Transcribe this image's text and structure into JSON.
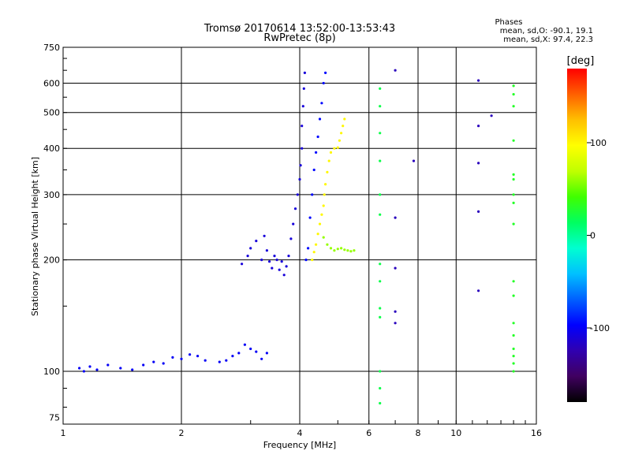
{
  "chart_data": {
    "type": "scatter",
    "title": "Tromsø 20170614 13:52:00-13:53:43",
    "subtitle": "RwPretec (8p)",
    "xlabel": "Frequency [MHz]",
    "ylabel": "Stationary phase Virtual Height [km]",
    "x_scale": "log",
    "y_scale": "log",
    "xlim": [
      1,
      16
    ],
    "ylim": [
      72,
      750
    ],
    "x_ticks": [
      1,
      2,
      4,
      6,
      8,
      10,
      16
    ],
    "x_tick_labels": [
      "1",
      "2",
      "4",
      "6",
      "8",
      "10",
      "16"
    ],
    "y_ticks": [
      75,
      100,
      200,
      300,
      400,
      500,
      600,
      750
    ],
    "y_tick_labels": [
      "75",
      "100",
      "200",
      "300",
      "400",
      "500",
      "600",
      "750"
    ],
    "grid_x_major": [
      2,
      4,
      6,
      8,
      10
    ],
    "grid_y_major": [
      100,
      200,
      300,
      400,
      500,
      600
    ],
    "stats": {
      "heading": "Phases",
      "line_o": "mean, sd,O: -90.1, 19.1",
      "line_x": "mean, sd,X:  97.4, 22.3"
    },
    "colorbar": {
      "label": "[deg]",
      "min": -180,
      "max": 180,
      "ticks": [
        100,
        0,
        -100
      ],
      "tick_labels": [
        "100",
        "0",
        "-100"
      ],
      "colors": [
        "#000000",
        "#400060",
        "#3000b0",
        "#0000ff",
        "#0060ff",
        "#00c0ff",
        "#00ffd0",
        "#00ff60",
        "#40ff00",
        "#c0ff00",
        "#ffff00",
        "#ffc000",
        "#ff6000",
        "#ff0000"
      ]
    },
    "traces": [
      {
        "name": "",
        "phase": -100,
        "points": [
          [
            1.1,
            102
          ],
          [
            1.13,
            100
          ],
          [
            1.17,
            103
          ],
          [
            1.22,
            101
          ],
          [
            1.3,
            104
          ],
          [
            1.4,
            102
          ],
          [
            1.5,
            101
          ],
          [
            1.6,
            104
          ],
          [
            1.7,
            106
          ],
          [
            1.8,
            105
          ],
          [
            1.9,
            109
          ],
          [
            2.0,
            108
          ],
          [
            2.1,
            111
          ],
          [
            2.2,
            110
          ],
          [
            2.3,
            107
          ],
          [
            2.5,
            106
          ],
          [
            2.6,
            107
          ],
          [
            2.7,
            110
          ],
          [
            2.8,
            112
          ],
          [
            2.9,
            118
          ],
          [
            3.0,
            115
          ],
          [
            3.1,
            113
          ],
          [
            3.2,
            108
          ],
          [
            3.3,
            112
          ]
        ]
      },
      {
        "name": "",
        "phase": -110,
        "points": [
          [
            2.85,
            195
          ],
          [
            2.95,
            205
          ],
          [
            3.0,
            215
          ],
          [
            3.1,
            225
          ],
          [
            3.2,
            200
          ],
          [
            3.25,
            232
          ],
          [
            3.3,
            212
          ],
          [
            3.35,
            198
          ],
          [
            3.4,
            190
          ],
          [
            3.45,
            205
          ],
          [
            3.5,
            200
          ],
          [
            3.55,
            188
          ],
          [
            3.6,
            198
          ],
          [
            3.65,
            182
          ],
          [
            3.7,
            192
          ],
          [
            3.75,
            205
          ],
          [
            3.8,
            228
          ],
          [
            3.85,
            250
          ],
          [
            3.9,
            275
          ],
          [
            3.95,
            300
          ],
          [
            4.0,
            330
          ],
          [
            4.02,
            360
          ],
          [
            4.05,
            400
          ],
          [
            4.05,
            460
          ],
          [
            4.08,
            520
          ],
          [
            4.1,
            580
          ],
          [
            4.12,
            640
          ]
        ]
      },
      {
        "name": "",
        "phase": -95,
        "points": [
          [
            4.15,
            200
          ],
          [
            4.2,
            215
          ],
          [
            4.25,
            260
          ],
          [
            4.3,
            300
          ],
          [
            4.35,
            350
          ],
          [
            4.4,
            390
          ],
          [
            4.45,
            430
          ],
          [
            4.5,
            480
          ],
          [
            4.55,
            530
          ],
          [
            4.6,
            600
          ],
          [
            4.65,
            640
          ]
        ]
      },
      {
        "name": "",
        "phase": 100,
        "points": [
          [
            4.3,
            200
          ],
          [
            4.35,
            210
          ],
          [
            4.4,
            220
          ],
          [
            4.45,
            235
          ],
          [
            4.5,
            250
          ],
          [
            4.55,
            265
          ],
          [
            4.6,
            280
          ],
          [
            4.62,
            300
          ],
          [
            4.65,
            320
          ],
          [
            4.7,
            345
          ],
          [
            4.75,
            370
          ],
          [
            4.8,
            390
          ],
          [
            4.9,
            400
          ],
          [
            5.0,
            402
          ],
          [
            5.05,
            420
          ],
          [
            5.1,
            440
          ],
          [
            5.15,
            460
          ],
          [
            5.2,
            480
          ]
        ]
      },
      {
        "name": "",
        "phase": 60,
        "points": [
          [
            4.6,
            230
          ],
          [
            4.7,
            220
          ],
          [
            4.8,
            215
          ],
          [
            4.9,
            212
          ],
          [
            5.0,
            214
          ],
          [
            5.1,
            215
          ],
          [
            5.2,
            213
          ],
          [
            5.3,
            212
          ],
          [
            5.4,
            211
          ],
          [
            5.5,
            212
          ]
        ]
      },
      {
        "name": "",
        "phase": 20,
        "points": [
          [
            6.4,
            580
          ],
          [
            6.4,
            520
          ],
          [
            6.4,
            440
          ],
          [
            6.4,
            370
          ],
          [
            6.4,
            300
          ],
          [
            6.4,
            265
          ],
          [
            6.4,
            195
          ],
          [
            6.4,
            175
          ],
          [
            6.4,
            148
          ],
          [
            6.4,
            140
          ],
          [
            6.4,
            100
          ],
          [
            6.4,
            90
          ],
          [
            6.4,
            82
          ]
        ]
      },
      {
        "name": "",
        "phase": -120,
        "points": [
          [
            7.0,
            650
          ],
          [
            7.0,
            260
          ],
          [
            7.0,
            190
          ],
          [
            7.0,
            145
          ],
          [
            7.0,
            135
          ],
          [
            7.8,
            370
          ],
          [
            11.4,
            610
          ],
          [
            11.4,
            460
          ],
          [
            11.4,
            365
          ],
          [
            11.4,
            270
          ],
          [
            11.4,
            165
          ],
          [
            12.3,
            490
          ]
        ]
      },
      {
        "name": "",
        "phase": 30,
        "points": [
          [
            14.0,
            590
          ],
          [
            14.0,
            560
          ],
          [
            14.0,
            520
          ],
          [
            14.0,
            420
          ],
          [
            14.0,
            340
          ],
          [
            14.0,
            330
          ],
          [
            14.0,
            300
          ],
          [
            14.0,
            285
          ],
          [
            14.0,
            250
          ],
          [
            14.0,
            175
          ],
          [
            14.0,
            160
          ],
          [
            14.0,
            135
          ],
          [
            14.0,
            125
          ],
          [
            14.0,
            115
          ],
          [
            14.0,
            110
          ],
          [
            14.0,
            105
          ],
          [
            14.0,
            100
          ]
        ]
      }
    ]
  }
}
